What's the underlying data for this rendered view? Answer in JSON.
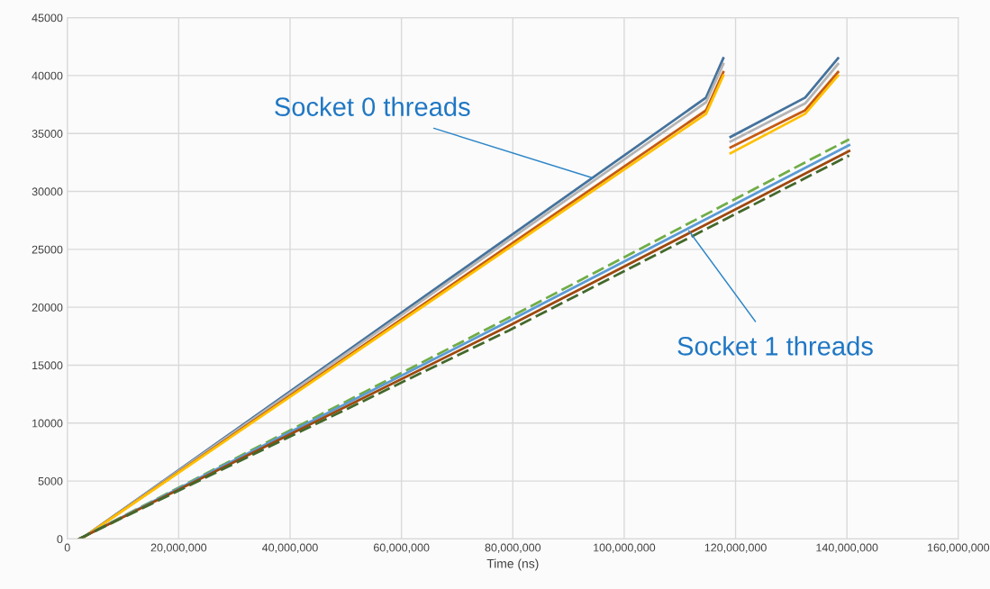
{
  "chart_data": {
    "type": "line",
    "xlabel": "Time (ns)",
    "xlim": [
      0,
      160000000
    ],
    "ylim": [
      0,
      45000
    ],
    "xticks": [
      0,
      {
        "value": 20000000,
        "label": "20,000,000"
      },
      {
        "value": 40000000,
        "label": "40,000,000"
      },
      {
        "value": 60000000,
        "label": "60,000,000"
      },
      {
        "value": 80000000,
        "label": "80,000,000"
      },
      {
        "value": 100000000,
        "label": "100,000,000"
      },
      {
        "value": 120000000,
        "label": "120,000,000"
      },
      {
        "value": 140000000,
        "label": "140,000,000"
      },
      {
        "value": 160000000,
        "label": "160,000,000"
      }
    ],
    "yticks": [
      0,
      5000,
      10000,
      15000,
      20000,
      25000,
      30000,
      35000,
      40000,
      45000
    ],
    "grid": true,
    "marker": "none",
    "series": [
      {
        "color": "#44729c",
        "line_style": "solid",
        "x": [
          2500000,
          114700000,
          117800000,
          118500000,
          119100000,
          132500000,
          138400000
        ],
        "values": [
          0,
          38100,
          41500,
          null,
          34700,
          38100,
          41500
        ]
      },
      {
        "color": "#b4b4b4",
        "line_style": "solid",
        "x": [
          2500000,
          114700000,
          117800000,
          118500000,
          119100000,
          132500000,
          138400000
        ],
        "values": [
          0,
          37700,
          41000,
          null,
          34300,
          37600,
          41000
        ]
      },
      {
        "color": "#c55a11",
        "line_style": "solid",
        "x": [
          2500000,
          114700000,
          117800000,
          118500000,
          119100000,
          132500000,
          138400000
        ],
        "values": [
          0,
          37000,
          40300,
          null,
          33800,
          37000,
          40300
        ]
      },
      {
        "color": "#ffc000",
        "line_style": "solid",
        "x": [
          2500000,
          114700000,
          117800000,
          118500000,
          119100000,
          132500000,
          138400000
        ],
        "values": [
          0,
          36700,
          40000,
          null,
          33300,
          36700,
          40000
        ]
      },
      {
        "color": "#70ad47",
        "line_style": "dashed",
        "x": [
          2100000,
          79300000,
          140400000
        ],
        "values": [
          0,
          19100,
          34500
        ]
      },
      {
        "color": "#5b9bd5",
        "line_style": "solid",
        "x": [
          2100000,
          79300000,
          140400000
        ],
        "values": [
          0,
          18800,
          34000
        ]
      },
      {
        "color": "#9e480e",
        "line_style": "solid",
        "x": [
          2100000,
          79300000,
          140400000
        ],
        "values": [
          0,
          18400,
          33500
        ]
      },
      {
        "color": "#43682b",
        "line_style": "dashed",
        "x": [
          2100000,
          79300000,
          140400000
        ],
        "values": [
          0,
          18000,
          33100
        ]
      }
    ],
    "annotations": [
      {
        "text": "Socket 0 threads",
        "x": 94300000,
        "y": 31170
      },
      {
        "text": "Socket 1 threads",
        "x": 111600000,
        "y": 26600
      }
    ]
  }
}
